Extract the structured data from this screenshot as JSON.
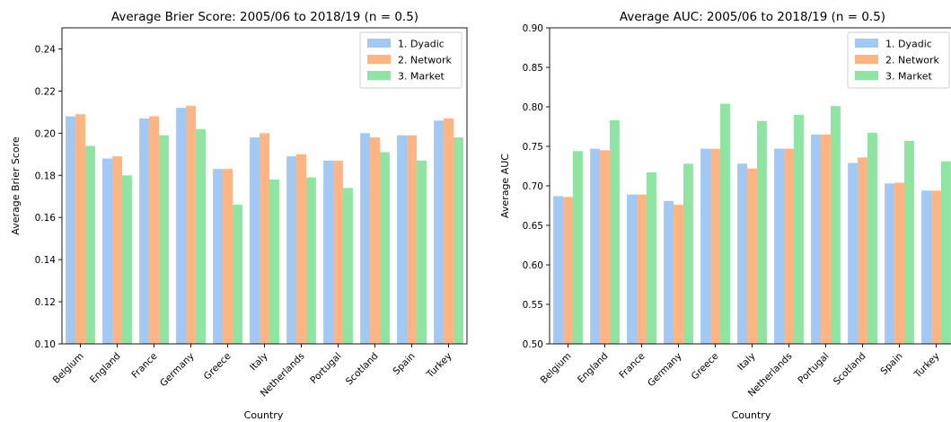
{
  "chart_data": [
    {
      "type": "bar",
      "title": "Average Brier Score: 2005/06 to 2018/19 (n = 0.5)",
      "xlabel": "Country",
      "ylabel": "Average Brier Score",
      "ylim": [
        0.1,
        0.25
      ],
      "yticks": [
        "0.10",
        "0.12",
        "0.14",
        "0.16",
        "0.18",
        "0.20",
        "0.22",
        "0.24"
      ],
      "legend_position": "top-right",
      "grid": false,
      "categories": [
        "Belgium",
        "England",
        "France",
        "Germany",
        "Greece",
        "Italy",
        "Netherlands",
        "Portugal",
        "Scotland",
        "Spain",
        "Turkey"
      ],
      "series": [
        {
          "name": "1. Dyadic",
          "color": "#a1c9f4",
          "values": [
            0.208,
            0.188,
            0.207,
            0.212,
            0.183,
            0.198,
            0.189,
            0.187,
            0.2,
            0.199,
            0.206
          ]
        },
        {
          "name": "2. Network",
          "color": "#ffb482",
          "values": [
            0.209,
            0.189,
            0.208,
            0.213,
            0.183,
            0.2,
            0.19,
            0.187,
            0.198,
            0.199,
            0.207
          ]
        },
        {
          "name": "3. Market",
          "color": "#8de5a1",
          "values": [
            0.194,
            0.18,
            0.199,
            0.202,
            0.166,
            0.178,
            0.179,
            0.174,
            0.191,
            0.187,
            0.198
          ]
        }
      ]
    },
    {
      "type": "bar",
      "title": "Average AUC: 2005/06 to 2018/19 (n = 0.5)",
      "xlabel": "Country",
      "ylabel": "Average AUC",
      "ylim": [
        0.5,
        0.9
      ],
      "yticks": [
        "0.50",
        "0.55",
        "0.60",
        "0.65",
        "0.70",
        "0.75",
        "0.80",
        "0.85",
        "0.90"
      ],
      "legend_position": "top-right",
      "grid": false,
      "categories": [
        "Belgium",
        "England",
        "France",
        "Germany",
        "Greece",
        "Italy",
        "Netherlands",
        "Portugal",
        "Scotland",
        "Spain",
        "Turkey"
      ],
      "series": [
        {
          "name": "1. Dyadic",
          "color": "#a1c9f4",
          "values": [
            0.687,
            0.747,
            0.689,
            0.681,
            0.747,
            0.728,
            0.747,
            0.765,
            0.729,
            0.703,
            0.694
          ]
        },
        {
          "name": "2. Network",
          "color": "#ffb482",
          "values": [
            0.686,
            0.745,
            0.689,
            0.676,
            0.747,
            0.722,
            0.747,
            0.765,
            0.736,
            0.704,
            0.694
          ]
        },
        {
          "name": "3. Market",
          "color": "#8de5a1",
          "values": [
            0.744,
            0.783,
            0.717,
            0.728,
            0.804,
            0.782,
            0.79,
            0.801,
            0.767,
            0.757,
            0.731
          ]
        }
      ]
    }
  ]
}
